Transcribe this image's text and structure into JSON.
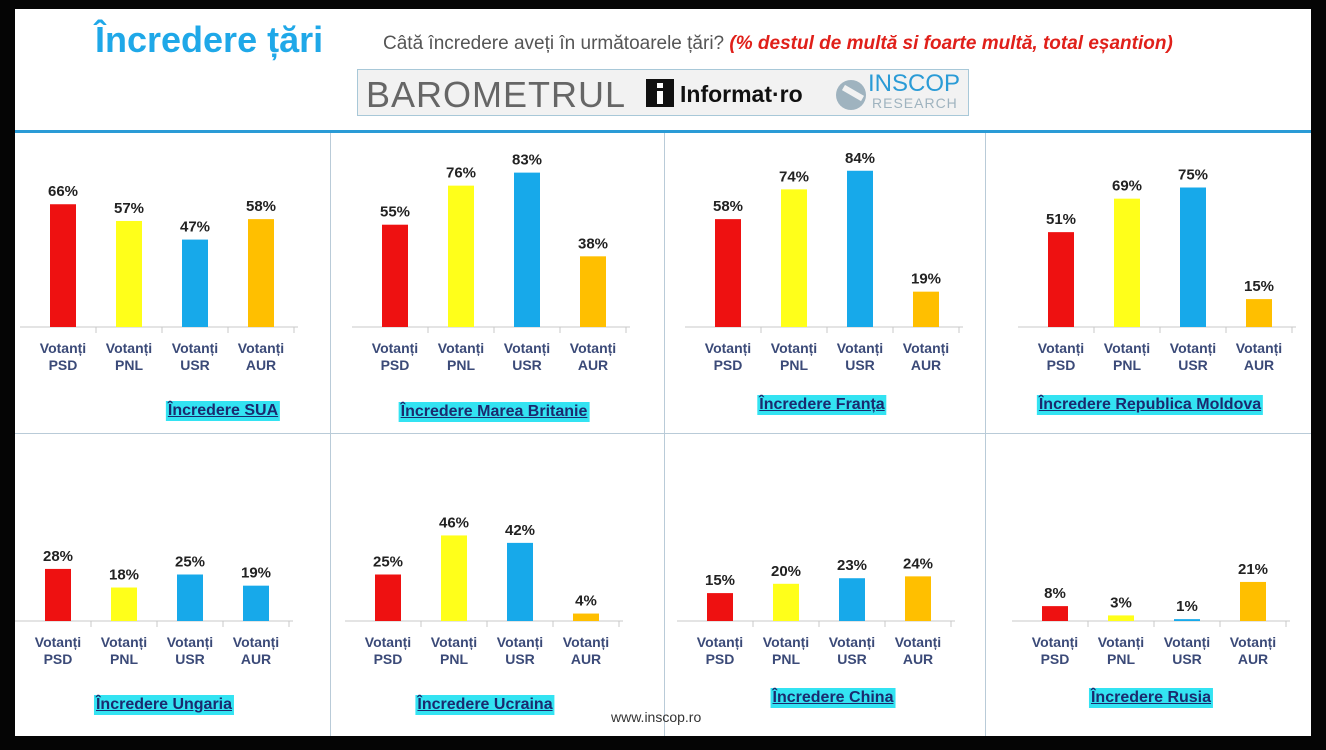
{
  "header": {
    "title": "Încredere țări",
    "question": "Câtă încredere aveți în următoarele țări?",
    "note": "(% destul de multă si foarte multă, total eșantion)",
    "brand1": "BAROMETRUL",
    "brand2": "Informat·ro",
    "brand3": "INSCOP",
    "brand3_sub": "RESEARCH"
  },
  "footer": {
    "url": "www.inscop.ro"
  },
  "colors": {
    "PSD": "#ee1111",
    "PNL": "#ffff1a",
    "USR": "#17a9ea",
    "AUR": "#ffbf00"
  },
  "chart_data": [
    {
      "type": "bar",
      "title": "Încredere SUA",
      "categories": [
        "Votanți PSD",
        "Votanți PNL",
        "Votanți USR",
        "Votanți AUR"
      ],
      "values": [
        66,
        57,
        47,
        58
      ],
      "labels": [
        "66%",
        "57%",
        "47%",
        "58%"
      ],
      "colors": [
        "#ee1111",
        "#ffff1a",
        "#17a9ea",
        "#ffbf00"
      ]
    },
    {
      "type": "bar",
      "title": "Încredere Marea Britanie",
      "categories": [
        "Votanți PSD",
        "Votanți PNL",
        "Votanți USR",
        "Votanți AUR"
      ],
      "values": [
        55,
        76,
        83,
        38
      ],
      "labels": [
        "55%",
        "76%",
        "83%",
        "38%"
      ],
      "colors": [
        "#ee1111",
        "#ffff1a",
        "#17a9ea",
        "#ffbf00"
      ]
    },
    {
      "type": "bar",
      "title": "Încredere Franța",
      "categories": [
        "Votanți PSD",
        "Votanți PNL",
        "Votanți USR",
        "Votanți AUR"
      ],
      "values": [
        58,
        74,
        84,
        19
      ],
      "labels": [
        "58%",
        "74%",
        "84%",
        "19%"
      ],
      "colors": [
        "#ee1111",
        "#ffff1a",
        "#17a9ea",
        "#ffbf00"
      ]
    },
    {
      "type": "bar",
      "title": "Încredere Republica Moldova",
      "categories": [
        "Votanți PSD",
        "Votanți PNL",
        "Votanți USR",
        "Votanți AUR"
      ],
      "values": [
        51,
        69,
        75,
        15
      ],
      "labels": [
        "51%",
        "69%",
        "75%",
        "15%"
      ],
      "colors": [
        "#ee1111",
        "#ffff1a",
        "#17a9ea",
        "#ffbf00"
      ]
    },
    {
      "type": "bar",
      "title": "Încredere Ungaria",
      "categories": [
        "Votanți PSD",
        "Votanți PNL",
        "Votanți USR",
        "Votanți AUR"
      ],
      "values": [
        28,
        18,
        25,
        19
      ],
      "labels": [
        "28%",
        "18%",
        "25%",
        "19%"
      ],
      "colors": [
        "#ee1111",
        "#ffff1a",
        "#17a9ea",
        "#17a9ea"
      ]
    },
    {
      "type": "bar",
      "title": "Încredere Ucraina",
      "categories": [
        "Votanți PSD",
        "Votanți PNL",
        "Votanți USR",
        "Votanți AUR"
      ],
      "values": [
        25,
        46,
        42,
        4
      ],
      "labels": [
        "25%",
        "46%",
        "42%",
        "4%"
      ],
      "colors": [
        "#ee1111",
        "#ffff1a",
        "#17a9ea",
        "#ffbf00"
      ]
    },
    {
      "type": "bar",
      "title": "Încredere China",
      "categories": [
        "Votanți PSD",
        "Votanți PNL",
        "Votanți USR",
        "Votanți AUR"
      ],
      "values": [
        15,
        20,
        23,
        24
      ],
      "labels": [
        "15%",
        "20%",
        "23%",
        "24%"
      ],
      "colors": [
        "#ee1111",
        "#ffff1a",
        "#17a9ea",
        "#ffbf00"
      ]
    },
    {
      "type": "bar",
      "title": "Încredere Rusia",
      "categories": [
        "Votanți PSD",
        "Votanți PNL",
        "Votanți USR",
        "Votanți AUR"
      ],
      "values": [
        8,
        3,
        1,
        21
      ],
      "labels": [
        "8%",
        "3%",
        "1%",
        "21%"
      ],
      "colors": [
        "#ee1111",
        "#ffff1a",
        "#17a9ea",
        "#ffbf00"
      ]
    }
  ]
}
